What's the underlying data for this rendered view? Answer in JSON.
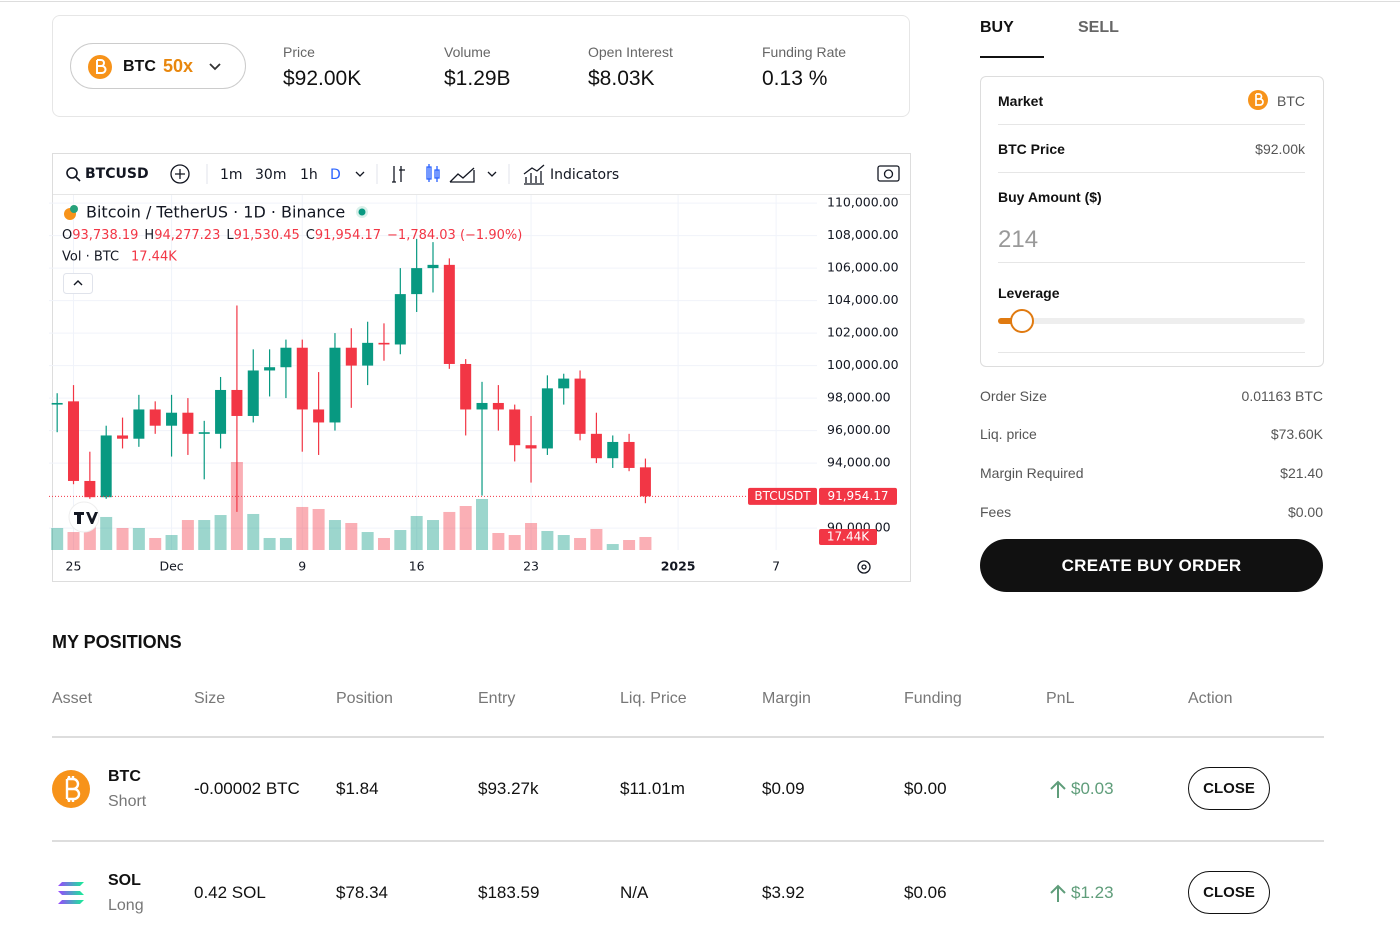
{
  "header": {
    "market": {
      "symbol": "BTC",
      "leverage": "50x"
    },
    "stats": [
      {
        "label": "Price",
        "value": "$92.00K"
      },
      {
        "label": "Volume",
        "value": "$1.29B"
      },
      {
        "label": "Open Interest",
        "value": "$8.03K"
      },
      {
        "label": "Funding Rate",
        "value": "0.13 %"
      }
    ]
  },
  "toolbar": {
    "symbol": "BTCUSD",
    "intervals": [
      "1m",
      "30m",
      "1h",
      "D"
    ],
    "active_interval": 3,
    "indicators": "Indicators"
  },
  "chart_data": {
    "type": "candlestick",
    "title": "Bitcoin / TetherUS · 1D · Binance",
    "ohlc_legend": [
      {
        "label": "O",
        "value": "93,738.19"
      },
      {
        "label": "H",
        "value": "94,277.23"
      },
      {
        "label": "L",
        "value": "91,530.45"
      },
      {
        "label": "C",
        "value": "91,954.17"
      }
    ],
    "change": "−1,784.03 (−1.90%)",
    "volume_title": "Vol · BTC",
    "categories": [
      null,
      "25",
      null,
      null,
      null,
      null,
      null,
      "Dec",
      null,
      null,
      null,
      null,
      null,
      null,
      null,
      "9",
      null,
      null,
      null,
      null,
      null,
      null,
      "16",
      null,
      null,
      null,
      null,
      null,
      null,
      "23",
      null,
      null,
      null,
      null,
      null,
      null,
      null,
      null,
      "2025",
      null,
      null,
      null,
      null,
      null,
      "7",
      null,
      null
    ],
    "open": [
      97600,
      97800,
      92900,
      91900,
      95700,
      95500,
      97300,
      96300,
      97100,
      95800,
      95800,
      98500,
      96900,
      99700,
      99900,
      101100,
      97300,
      96500,
      101100,
      100000,
      101400,
      101300,
      104400,
      106000,
      106200,
      100100,
      97300,
      97700,
      97300,
      95100,
      94900,
      98600,
      99200,
      95800,
      94300,
      95300,
      93738.19,
      null,
      null,
      null,
      null,
      null,
      null,
      null,
      null,
      null,
      null
    ],
    "high": [
      98300,
      98800,
      94700,
      96300,
      96800,
      98200,
      97800,
      98200,
      98000,
      96600,
      99300,
      103700,
      101000,
      101000,
      101600,
      101600,
      99600,
      102000,
      102300,
      102700,
      102600,
      106000,
      107800,
      107600,
      106600,
      100400,
      99000,
      98800,
      97600,
      96900,
      99400,
      99500,
      99700,
      97100,
      95700,
      95800,
      94277.23,
      null,
      null,
      null,
      null,
      null,
      null,
      null,
      null,
      null,
      null
    ],
    "low": [
      95900,
      92700,
      91800,
      91800,
      94900,
      95000,
      95800,
      94400,
      94500,
      93000,
      94900,
      91000,
      96500,
      98100,
      98000,
      94700,
      94500,
      96000,
      97400,
      98800,
      100300,
      100700,
      103300,
      104500,
      99800,
      95700,
      92000,
      96000,
      94100,
      92800,
      94500,
      97600,
      95400,
      94000,
      93700,
      93500,
      91530.45,
      null,
      null,
      null,
      null,
      null,
      null,
      null,
      null,
      null,
      null
    ],
    "close": [
      97700,
      92900,
      91900,
      95700,
      95500,
      97300,
      96300,
      97100,
      95800,
      95900,
      98500,
      96900,
      99700,
      99900,
      101100,
      97300,
      96500,
      101100,
      100000,
      101400,
      101300,
      104400,
      106000,
      106200,
      100100,
      97300,
      97700,
      97300,
      95100,
      94900,
      98600,
      99200,
      95800,
      94300,
      95300,
      93700,
      91954.17,
      null,
      null,
      null,
      null,
      null,
      null,
      null,
      null,
      null,
      null
    ],
    "volume": [
      29500,
      24100,
      34900,
      44300,
      29500,
      29500,
      16100,
      20100,
      40200,
      40200,
      46900,
      118000,
      48300,
      16100,
      16100,
      57700,
      55000,
      40200,
      36200,
      24100,
      16100,
      26800,
      45600,
      40200,
      51000,
      59000,
      68400,
      22800,
      20100,
      36200,
      25500,
      20100,
      16100,
      28200,
      8000,
      13400,
      17440,
      null,
      null,
      null,
      null,
      null,
      null,
      null,
      null,
      null,
      null
    ],
    "up_color": "#089981",
    "down_color": "#f23645",
    "ylim": [
      88650,
      110500
    ],
    "yticks": [
      {
        "value": 110000,
        "label": "110,000.00"
      },
      {
        "value": 108000,
        "label": "108,000.00"
      },
      {
        "value": 106000,
        "label": "106,000.00"
      },
      {
        "value": 104000,
        "label": "104,000.00"
      },
      {
        "value": 102000,
        "label": "102,000.00"
      },
      {
        "value": 100000,
        "label": "100,000.00"
      },
      {
        "value": 98000,
        "label": "98,000.00"
      },
      {
        "value": 96000,
        "label": "96,000.00"
      },
      {
        "value": 94000,
        "label": "94,000.00"
      },
      {
        "value": 90000,
        "label": "90,000.00"
      }
    ],
    "grid": true,
    "last_price": {
      "symbol": "BTCUSDT",
      "value": 91954.17,
      "label": "91,954.17"
    },
    "last_volume": {
      "value": 17440,
      "label": "17.44K"
    }
  },
  "order": {
    "tabs": [
      "BUY",
      "SELL"
    ],
    "market": {
      "label": "Market",
      "value": "BTC"
    },
    "price": {
      "label": "BTC Price",
      "value": "$92.00k"
    },
    "amount": {
      "label": "Buy Amount ($)",
      "value": "214"
    },
    "leverage": {
      "label": "Leverage"
    },
    "summary": [
      {
        "label": "Order Size",
        "value": "0.01163 BTC"
      },
      {
        "label": "Liq. price",
        "value": "$73.60K"
      },
      {
        "label": "Margin Required",
        "value": "$21.40"
      },
      {
        "label": "Fees",
        "value": "$0.00"
      }
    ],
    "button": "CREATE BUY ORDER"
  },
  "positions": {
    "title": "MY POSITIONS",
    "columns": [
      "Asset",
      "Size",
      "Position",
      "Entry",
      "Liq. Price",
      "Margin",
      "Funding",
      "PnL",
      "Action"
    ],
    "rows": [
      {
        "asset": "BTC",
        "side": "Short",
        "size": "-0.00002 BTC",
        "position": "$1.84",
        "entry": "$93.27k",
        "liq": "$11.01m",
        "margin": "$0.09",
        "funding": "$0.00",
        "pnl": "$0.03",
        "action": "CLOSE"
      },
      {
        "asset": "SOL",
        "side": "Long",
        "size": "0.42 SOL",
        "position": "$78.34",
        "entry": "$183.59",
        "liq": "N/A",
        "margin": "$3.92",
        "funding": "$0.06",
        "pnl": "$1.23",
        "action": "CLOSE"
      }
    ]
  }
}
